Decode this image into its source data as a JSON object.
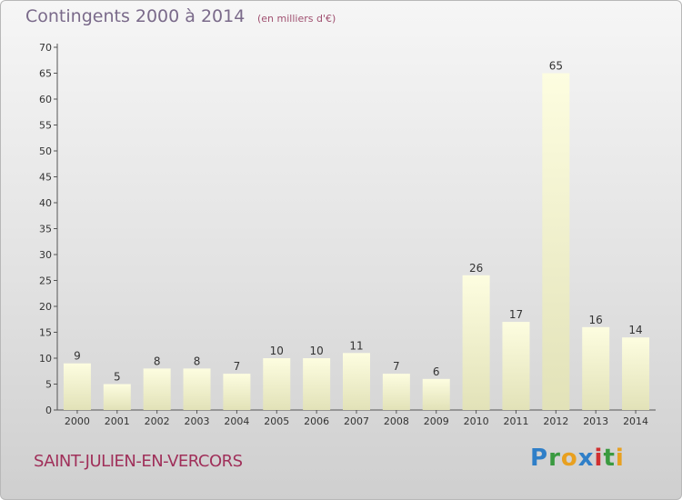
{
  "chart_data": {
    "type": "bar",
    "title": "Contingents 2000 à 2014",
    "subtitle": "(en milliers d'€)",
    "categories": [
      "2000",
      "2001",
      "2002",
      "2003",
      "2004",
      "2005",
      "2006",
      "2007",
      "2008",
      "2009",
      "2010",
      "2011",
      "2012",
      "2013",
      "2014"
    ],
    "values": [
      9,
      5,
      8,
      8,
      7,
      10,
      10,
      11,
      7,
      6,
      26,
      17,
      65,
      16,
      14
    ],
    "data_labels": [
      "9",
      "5",
      "8",
      "8",
      "7",
      "10",
      "10",
      "11",
      "7",
      "6",
      "26",
      "17",
      "65",
      "16",
      "14"
    ],
    "yticks": [
      0,
      5,
      10,
      15,
      20,
      25,
      30,
      35,
      40,
      45,
      50,
      55,
      60,
      65,
      70
    ],
    "ytick_labels": [
      "0",
      "5",
      "10",
      "15",
      "20",
      "25",
      "30",
      "35",
      "40",
      "45",
      "50",
      "55",
      "60",
      "65",
      "70"
    ],
    "ylim": [
      0,
      70
    ],
    "grid": false,
    "bar_color_top": "#fdfde0",
    "bar_color_bottom": "#e2e2b8"
  },
  "commune": "SAINT-JULIEN-EN-VERCORS",
  "logo": {
    "p": "P",
    "r": "r",
    "o": "o",
    "x": "x",
    "i1": "i",
    "t": "t",
    "i2": "i"
  }
}
